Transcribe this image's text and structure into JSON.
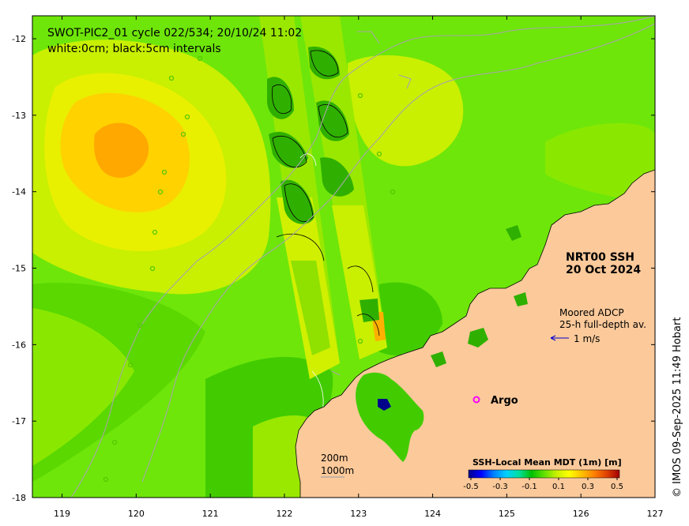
{
  "title_line1": "SWOT-PIC2_01 cycle 022/534; 20/10/24 11:02",
  "title_line2": "white:0cm; black:5cm intervals",
  "product": {
    "line1": "NRT00 SSH",
    "line2": "20 Oct 2024"
  },
  "adcp": {
    "line1": "Moored ADCP",
    "line2": "25-h full-depth av.",
    "scale_label": "1 m/s"
  },
  "argo_label": "Argo",
  "bathy_labels": [
    "200m",
    "1000m"
  ],
  "colorbar": {
    "label": "SSH-Local Mean MDT (1m) [m]",
    "ticks": [
      "-0.5",
      "-0.3",
      "-0.1",
      "0.1",
      "0.3",
      "0.5"
    ],
    "colors": [
      "#00008b",
      "#0000ff",
      "#0080ff",
      "#00d0ff",
      "#00e0a0",
      "#00c000",
      "#60e000",
      "#c8f000",
      "#ffff00",
      "#ffc000",
      "#ff8000",
      "#e04000",
      "#a00000"
    ]
  },
  "credit": "© IMOS 09-Sep-2025 11:49 Hobart",
  "colors": {
    "land": "#fbc99a",
    "sea_base": "#6ee60a",
    "argo": "#ff00ff",
    "adcp_arrow": "#0000cc"
  },
  "chart_data": {
    "type": "map",
    "xlim": [
      118.6,
      127
    ],
    "ylim": [
      -18,
      -11.7
    ],
    "x_ticks": [
      119,
      120,
      121,
      122,
      123,
      124,
      125,
      126,
      127
    ],
    "y_ticks": [
      -12,
      -13,
      -14,
      -15,
      -16,
      -17,
      -18
    ],
    "x_tick_labels": [
      "119",
      "120",
      "121",
      "122",
      "123",
      "124",
      "125",
      "126",
      "127"
    ],
    "y_tick_labels": [
      "-12",
      "-13",
      "-14",
      "-15",
      "-16",
      "-17",
      "-18"
    ],
    "ssh_highs_approx": [
      {
        "lon": 119.7,
        "lat": -13.5,
        "value_m": 0.25
      },
      {
        "lon": 122.9,
        "lat": -16.0,
        "value_m": 0.2
      }
    ],
    "argo_floats": [
      {
        "lon": 124.62,
        "lat": -16.72
      }
    ],
    "adcp_moorings": [
      {
        "lon": 125.6,
        "lat": -15.92
      }
    ]
  }
}
